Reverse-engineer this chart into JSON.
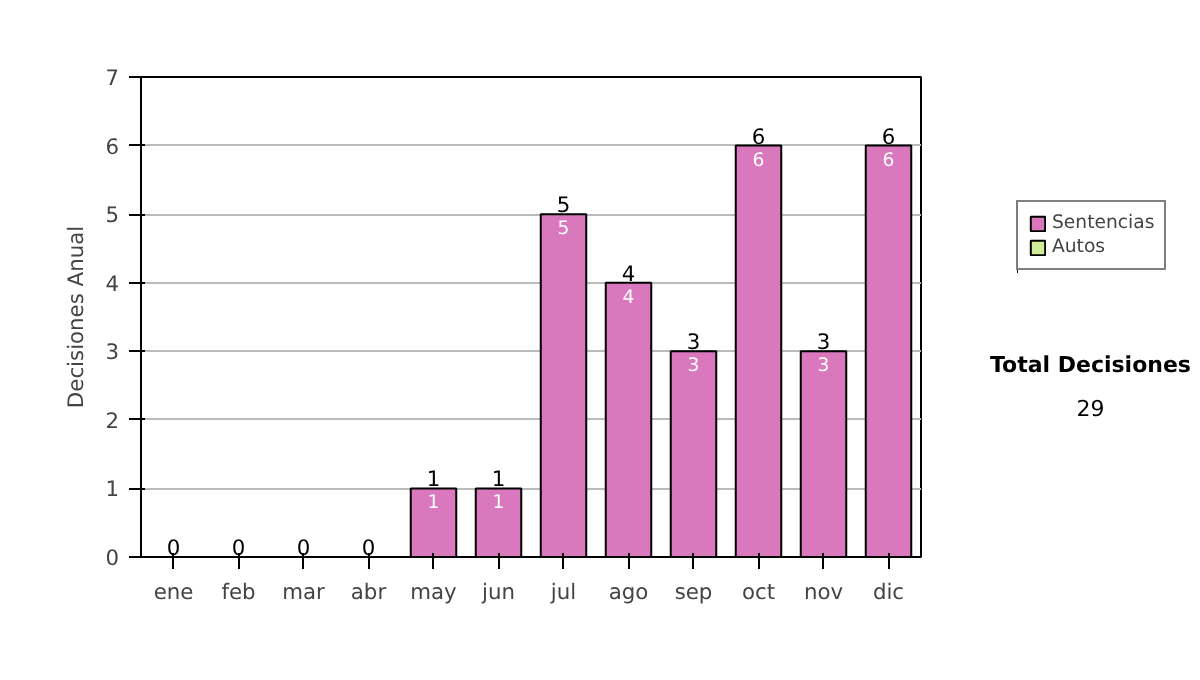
{
  "chart_data": {
    "type": "bar",
    "stacked": true,
    "ylabel": "Decisiones Anual",
    "categories": [
      "ene",
      "feb",
      "mar",
      "abr",
      "may",
      "jun",
      "jul",
      "ago",
      "sep",
      "oct",
      "nov",
      "dic"
    ],
    "series": [
      {
        "name": "Sentencias",
        "color": "#d978bd",
        "values": [
          0,
          0,
          0,
          0,
          1,
          1,
          5,
          4,
          3,
          6,
          3,
          6
        ],
        "value_labels": [
          null,
          null,
          null,
          null,
          "1",
          "1",
          "5",
          "4",
          "3",
          "6",
          "3",
          "6"
        ]
      },
      {
        "name": "Autos",
        "color": "#ccee99",
        "values": [
          0,
          0,
          0,
          0,
          0,
          0,
          0,
          0,
          0,
          0,
          0,
          0
        ]
      }
    ],
    "totals": [
      "0",
      "0",
      "0",
      "0",
      "1",
      "1",
      "5",
      "4",
      "3",
      "6",
      "3",
      "6"
    ],
    "ylim": [
      0,
      7
    ],
    "yticks": [
      0,
      1,
      2,
      3,
      4,
      5,
      6,
      7
    ],
    "grid": "y",
    "legend": "right",
    "annotations": [
      "Total Decisiones",
      "29"
    ]
  }
}
